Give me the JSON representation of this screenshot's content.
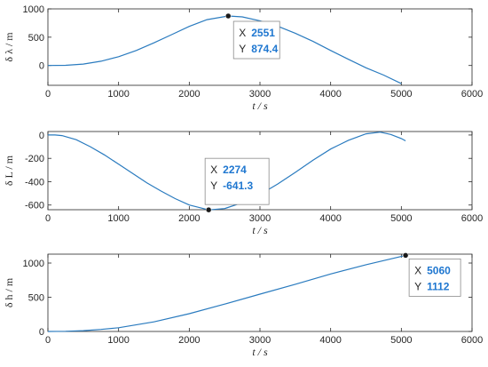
{
  "colors": {
    "line": "#2a7bbf",
    "axis": "#262626",
    "marker": "#1a1a1a",
    "datatip_value": "#1f77d0"
  },
  "chart_data": [
    {
      "type": "line",
      "xlabel": "t / s",
      "ylabel": "δ λ / m",
      "xlim": [
        0,
        6000
      ],
      "ylim": [
        -350,
        1000
      ],
      "xticks": [
        0,
        1000,
        2000,
        3000,
        4000,
        5000,
        6000
      ],
      "yticks": [
        0,
        500,
        1000
      ],
      "x": [
        0,
        250,
        500,
        750,
        1000,
        1250,
        1500,
        1750,
        2000,
        2250,
        2551,
        2750,
        3000,
        3250,
        3500,
        3750,
        4000,
        4250,
        4500,
        4750,
        5000
      ],
      "y": [
        0,
        3,
        25,
        75,
        155,
        265,
        400,
        545,
        690,
        810,
        874.4,
        858,
        790,
        695,
        570,
        425,
        265,
        110,
        -40,
        -170,
        -320
      ],
      "datatip": {
        "x_label": "X",
        "x": "2551",
        "y_label": "Y",
        "y": "874.4"
      }
    },
    {
      "type": "line",
      "xlabel": "t / s",
      "ylabel": "δ L / m",
      "xlim": [
        0,
        6000
      ],
      "ylim": [
        -640,
        30
      ],
      "xticks": [
        0,
        1000,
        2000,
        3000,
        4000,
        5000,
        6000
      ],
      "yticks": [
        -600,
        -400,
        -200,
        0
      ],
      "x": [
        0,
        100,
        200,
        400,
        600,
        800,
        1000,
        1200,
        1400,
        1600,
        1800,
        2000,
        2274,
        2500,
        2750,
        3000,
        3250,
        3500,
        3750,
        4000,
        4250,
        4500,
        4700,
        4850,
        5000,
        5060
      ],
      "y": [
        0,
        0,
        -5,
        -40,
        -100,
        -170,
        -250,
        -330,
        -410,
        -480,
        -545,
        -600,
        -641.3,
        -630,
        -580,
        -510,
        -420,
        -320,
        -215,
        -120,
        -45,
        10,
        25,
        5,
        -30,
        -50
      ],
      "datatip": {
        "x_label": "X",
        "x": "2274",
        "y_label": "Y",
        "y": "-641.3"
      }
    },
    {
      "type": "line",
      "xlabel": "t / s",
      "ylabel": "δ h / m",
      "xlim": [
        0,
        6000
      ],
      "ylim": [
        0,
        1130
      ],
      "xticks": [
        0,
        1000,
        2000,
        3000,
        4000,
        5000,
        6000
      ],
      "yticks": [
        0,
        500,
        1000
      ],
      "x": [
        0,
        250,
        500,
        750,
        1000,
        1500,
        2000,
        2500,
        3000,
        3500,
        4000,
        4500,
        5060
      ],
      "y": [
        0,
        3,
        12,
        30,
        55,
        140,
        260,
        400,
        545,
        690,
        840,
        975,
        1112
      ],
      "datatip": {
        "x_label": "X",
        "x": "5060",
        "y_label": "Y",
        "y": "1112"
      }
    }
  ]
}
